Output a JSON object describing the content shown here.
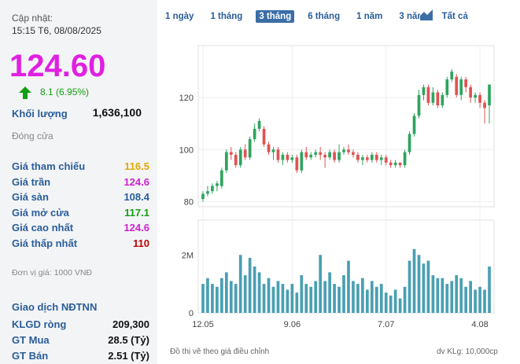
{
  "header": {
    "updated_label": "Cập nhật:",
    "updated_time": "15:15 T6, 08/08/2025"
  },
  "price": {
    "value": "124.60",
    "change": "8.1 (6.95%)",
    "color": "#e020e0",
    "change_color": "#12a012"
  },
  "volume": {
    "label": "Khối lượng",
    "value": "1,636,100"
  },
  "status": "Đóng cửa",
  "prices": [
    {
      "label": "Giá tham chiếu",
      "value": "116.5",
      "color": "#e0a800"
    },
    {
      "label": "Giá trần",
      "value": "124.6",
      "color": "#d021d0"
    },
    {
      "label": "Giá sàn",
      "value": "108.4",
      "color": "#2a5d9a"
    },
    {
      "label": "Giá mở cửa",
      "value": "117.1",
      "color": "#12a012"
    },
    {
      "label": "Giá cao nhất",
      "value": "124.6",
      "color": "#d021d0"
    },
    {
      "label": "Giá thấp nhất",
      "value": "110",
      "color": "#c00000"
    }
  ],
  "unit_note": "Đơn vị giá: 1000 VNĐ",
  "foreign": {
    "title": "Giao dịch NĐTNN",
    "rows": [
      {
        "label": "KLGD ròng",
        "value": "209,300"
      },
      {
        "label": "GT Mua",
        "value": "28.5 (Tỷ)"
      },
      {
        "label": "GT Bán",
        "value": "2.51 (Tỷ)"
      }
    ]
  },
  "tabs": [
    {
      "label": "1 ngày",
      "active": false
    },
    {
      "label": "1 tháng",
      "active": false
    },
    {
      "label": "3 tháng",
      "active": true
    },
    {
      "label": "6 tháng",
      "active": false
    },
    {
      "label": "1 năm",
      "active": false
    },
    {
      "label": "3 năm",
      "active": false
    },
    {
      "label": "Tất cả",
      "active": false
    }
  ],
  "footer": {
    "note": "Đồ thị vẽ theo giá điều chỉnh",
    "unit": "dv KLg: 10,000cp"
  },
  "chart_data": {
    "type": "candlestick",
    "price_axis": {
      "min": 78,
      "max": 140,
      "ticks": [
        80,
        100,
        120
      ]
    },
    "volume_axis": {
      "max": 3.2,
      "tick_labels": [
        "2M",
        "0"
      ],
      "ticks": [
        2,
        0
      ]
    },
    "x_ticks": [
      {
        "label": "12.05",
        "index": 0
      },
      {
        "label": "9.06",
        "index": 19
      },
      {
        "label": "7.07",
        "index": 39
      },
      {
        "label": "4.08",
        "index": 59
      }
    ],
    "colors": {
      "up": "#2ea45f",
      "down": "#e05252",
      "volume": "#4a9fb3"
    },
    "candles": [
      {
        "o": 81,
        "c": 83,
        "h": 84,
        "l": 80,
        "v": 1.0
      },
      {
        "o": 83,
        "c": 84,
        "h": 86,
        "l": 82,
        "v": 1.2
      },
      {
        "o": 84,
        "c": 86,
        "h": 87,
        "l": 83,
        "v": 1.0
      },
      {
        "o": 86,
        "c": 87,
        "h": 88,
        "l": 84,
        "v": 0.9
      },
      {
        "o": 86,
        "c": 92,
        "h": 93,
        "l": 85,
        "v": 1.2
      },
      {
        "o": 92,
        "c": 99,
        "h": 100,
        "l": 91,
        "v": 1.4
      },
      {
        "o": 99,
        "c": 98,
        "h": 101,
        "l": 96,
        "v": 1.1
      },
      {
        "o": 98,
        "c": 94,
        "h": 99,
        "l": 93,
        "v": 1.0
      },
      {
        "o": 94,
        "c": 100,
        "h": 101,
        "l": 93,
        "v": 2.0
      },
      {
        "o": 100,
        "c": 97,
        "h": 102,
        "l": 96,
        "v": 1.3
      },
      {
        "o": 97,
        "c": 104,
        "h": 105,
        "l": 96,
        "v": 1.9
      },
      {
        "o": 104,
        "c": 108,
        "h": 110,
        "l": 103,
        "v": 1.6
      },
      {
        "o": 108,
        "c": 111,
        "h": 112,
        "l": 107,
        "v": 1.4
      },
      {
        "o": 108,
        "c": 102,
        "h": 109,
        "l": 101,
        "v": 1.0
      },
      {
        "o": 102,
        "c": 99,
        "h": 103,
        "l": 98,
        "v": 1.2
      },
      {
        "o": 99,
        "c": 100,
        "h": 101,
        "l": 96,
        "v": 0.9
      },
      {
        "o": 100,
        "c": 96,
        "h": 101,
        "l": 95,
        "v": 1.1
      },
      {
        "o": 96,
        "c": 98,
        "h": 99,
        "l": 94,
        "v": 1.0
      },
      {
        "o": 98,
        "c": 96,
        "h": 99,
        "l": 95,
        "v": 0.8
      },
      {
        "o": 96,
        "c": 97,
        "h": 98,
        "l": 95,
        "v": 1.0
      },
      {
        "o": 97,
        "c": 92,
        "h": 98,
        "l": 91,
        "v": 0.7
      },
      {
        "o": 92,
        "c": 99,
        "h": 100,
        "l": 91,
        "v": 1.3
      },
      {
        "o": 99,
        "c": 97,
        "h": 101,
        "l": 96,
        "v": 1.0
      },
      {
        "o": 97,
        "c": 98,
        "h": 99,
        "l": 96,
        "v": 0.9
      },
      {
        "o": 98,
        "c": 99,
        "h": 100,
        "l": 97,
        "v": 1.1
      },
      {
        "o": 99,
        "c": 98,
        "h": 101,
        "l": 96,
        "v": 2.0
      },
      {
        "o": 98,
        "c": 97,
        "h": 99,
        "l": 93,
        "v": 1.1
      },
      {
        "o": 97,
        "c": 99,
        "h": 100,
        "l": 96,
        "v": 1.4
      },
      {
        "o": 99,
        "c": 96,
        "h": 100,
        "l": 95,
        "v": 1.0
      },
      {
        "o": 96,
        "c": 99,
        "h": 102,
        "l": 95,
        "v": 0.9
      },
      {
        "o": 99,
        "c": 100,
        "h": 101,
        "l": 98,
        "v": 1.3
      },
      {
        "o": 100,
        "c": 99,
        "h": 102,
        "l": 98,
        "v": 1.8
      },
      {
        "o": 99,
        "c": 98,
        "h": 100,
        "l": 97,
        "v": 1.1
      },
      {
        "o": 98,
        "c": 96,
        "h": 99,
        "l": 95,
        "v": 1.0
      },
      {
        "o": 96,
        "c": 97,
        "h": 98,
        "l": 94,
        "v": 1.2
      },
      {
        "o": 97,
        "c": 96,
        "h": 98,
        "l": 95,
        "v": 0.8
      },
      {
        "o": 96,
        "c": 98,
        "h": 99,
        "l": 95,
        "v": 1.1
      },
      {
        "o": 98,
        "c": 96,
        "h": 99,
        "l": 95,
        "v": 0.9
      },
      {
        "o": 96,
        "c": 97,
        "h": 98,
        "l": 94,
        "v": 1.0
      },
      {
        "o": 97,
        "c": 95,
        "h": 98,
        "l": 94,
        "v": 0.7
      },
      {
        "o": 95,
        "c": 94,
        "h": 96,
        "l": 93,
        "v": 0.6
      },
      {
        "o": 94,
        "c": 95,
        "h": 96,
        "l": 93,
        "v": 0.8
      },
      {
        "o": 95,
        "c": 94,
        "h": 95,
        "l": 93,
        "v": 0.5
      },
      {
        "o": 94,
        "c": 99,
        "h": 100,
        "l": 93,
        "v": 0.9
      },
      {
        "o": 99,
        "c": 106,
        "h": 107,
        "l": 98,
        "v": 1.8
      },
      {
        "o": 106,
        "c": 113,
        "h": 114,
        "l": 105,
        "v": 2.2
      },
      {
        "o": 113,
        "c": 121,
        "h": 123,
        "l": 112,
        "v": 2.0
      },
      {
        "o": 121,
        "c": 124,
        "h": 125,
        "l": 119,
        "v": 1.7
      },
      {
        "o": 124,
        "c": 118,
        "h": 125,
        "l": 117,
        "v": 1.8
      },
      {
        "o": 118,
        "c": 122,
        "h": 124,
        "l": 117,
        "v": 1.3
      },
      {
        "o": 122,
        "c": 117,
        "h": 123,
        "l": 116,
        "v": 1.2
      },
      {
        "o": 117,
        "c": 121,
        "h": 122,
        "l": 116,
        "v": 1.2
      },
      {
        "o": 121,
        "c": 127,
        "h": 128,
        "l": 120,
        "v": 1.0
      },
      {
        "o": 127,
        "c": 130,
        "h": 131,
        "l": 126,
        "v": 1.1
      },
      {
        "o": 128,
        "c": 121,
        "h": 129,
        "l": 120,
        "v": 1.3
      },
      {
        "o": 121,
        "c": 127,
        "h": 128,
        "l": 119,
        "v": 1.2
      },
      {
        "o": 127,
        "c": 124,
        "h": 128,
        "l": 122,
        "v": 0.9
      },
      {
        "o": 124,
        "c": 120,
        "h": 125,
        "l": 118,
        "v": 1.1
      },
      {
        "o": 120,
        "c": 121,
        "h": 122,
        "l": 118,
        "v": 0.8
      },
      {
        "o": 121,
        "c": 118,
        "h": 122,
        "l": 116,
        "v": 0.9
      },
      {
        "o": 118,
        "c": 116,
        "h": 119,
        "l": 110,
        "v": 0.8
      },
      {
        "o": 117,
        "c": 125,
        "h": 125,
        "l": 110,
        "v": 1.6
      }
    ]
  }
}
